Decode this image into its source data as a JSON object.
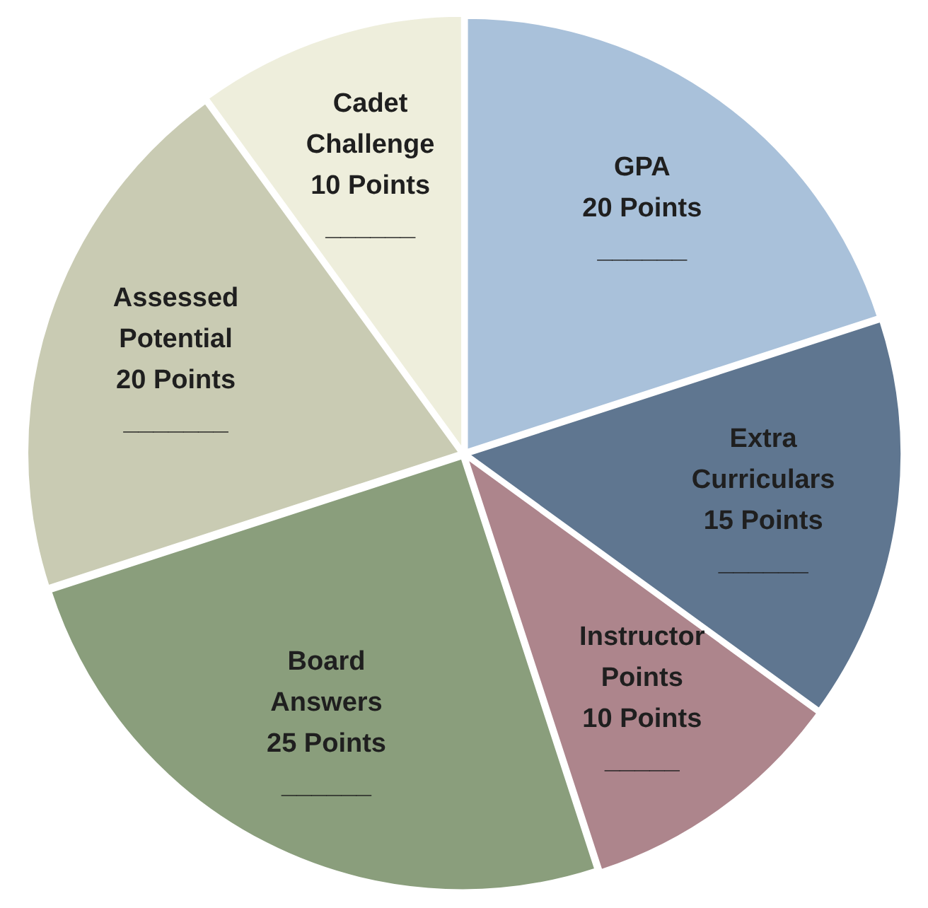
{
  "chart_data": {
    "type": "pie",
    "categories": [
      "GPA",
      "Extra Curriculars",
      "Instructor Points",
      "Board Answers",
      "Assessed Potential",
      "Cadet Challenge"
    ],
    "values": [
      20,
      15,
      10,
      25,
      20,
      10
    ],
    "value_labels": [
      "20 Points",
      "15 Points",
      "10 Points",
      "25 Points",
      "20 Points",
      "10 Points"
    ],
    "colors": [
      "#a9c1da",
      "#5f7690",
      "#ad858c",
      "#8a9e7c",
      "#c9cbb3",
      "#eeeedc"
    ],
    "annotations": [
      {
        "text": "______",
        "x": "GPA"
      },
      {
        "text": "______",
        "x": "Extra Curriculars"
      },
      {
        "text": "_____",
        "x": "Instructor Points"
      },
      {
        "text": "______",
        "x": "Board Answers"
      },
      {
        "text": "_______",
        "x": "Assessed Potential"
      },
      {
        "text": "______",
        "x": "Cadet Challenge"
      }
    ],
    "legend": false
  }
}
